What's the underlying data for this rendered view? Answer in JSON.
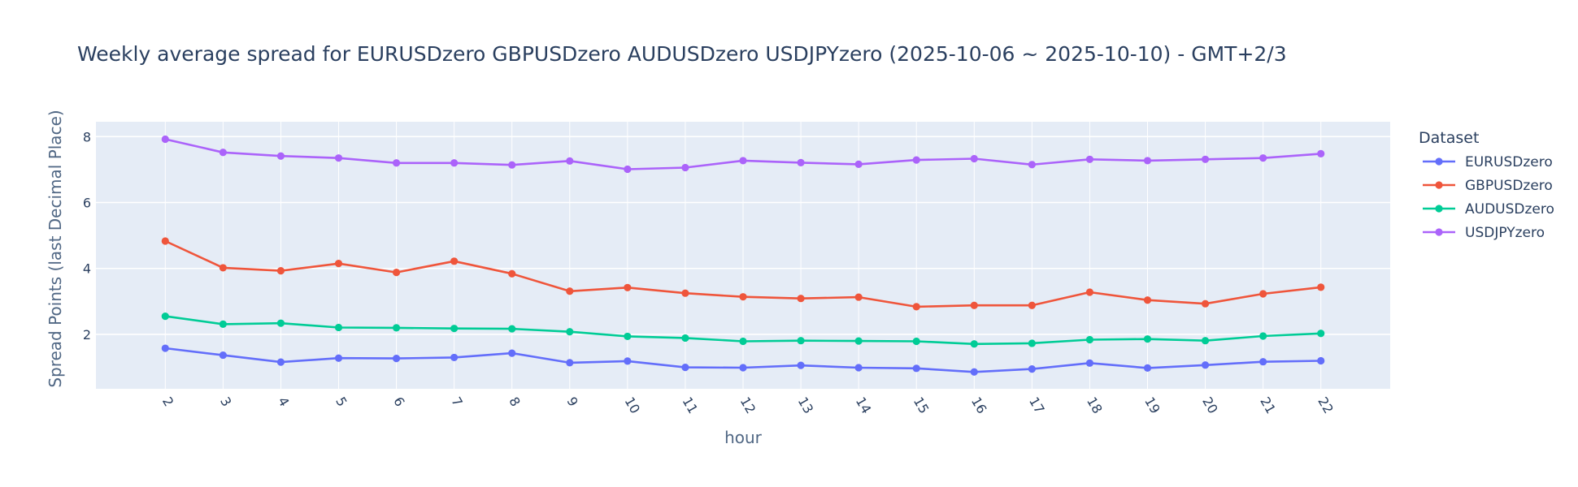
{
  "chart_data": {
    "type": "line",
    "title": "Weekly average spread for  EURUSDzero GBPUSDzero AUDUSDzero USDJPYzero (2025-10-06 ~ 2025-10-10) - GMT+2/3",
    "xlabel": "hour",
    "ylabel": "Spread Points (last Decimal Place)",
    "x": [
      2,
      3,
      4,
      5,
      6,
      7,
      8,
      9,
      10,
      11,
      12,
      13,
      14,
      15,
      16,
      17,
      18,
      19,
      20,
      21,
      22
    ],
    "x_tick_labels": [
      "2",
      "3",
      "4",
      "5",
      "6",
      "7",
      "8",
      "9",
      "10",
      "11",
      "12",
      "13",
      "14",
      "15",
      "16",
      "17",
      "18",
      "19",
      "20",
      "21",
      "22"
    ],
    "y_ticks": [
      2,
      4,
      6,
      8
    ],
    "ylim": [
      0.35,
      8.45
    ],
    "xlim": [
      0.8,
      23.2
    ],
    "grid": true,
    "legend": {
      "title": "Dataset",
      "placement": "right"
    },
    "series": [
      {
        "name": "EURUSDzero",
        "color": "#636efa",
        "values": [
          1.58,
          1.37,
          1.16,
          1.28,
          1.27,
          1.3,
          1.43,
          1.14,
          1.19,
          1.0,
          0.99,
          1.06,
          0.99,
          0.97,
          0.86,
          0.95,
          1.13,
          0.98,
          1.07,
          1.17,
          1.2
        ]
      },
      {
        "name": "GBPUSDzero",
        "color": "#ef553b",
        "values": [
          4.83,
          4.02,
          3.93,
          4.15,
          3.88,
          4.22,
          3.84,
          3.31,
          3.42,
          3.25,
          3.14,
          3.09,
          3.13,
          2.84,
          2.88,
          2.88,
          3.28,
          3.04,
          2.93,
          3.23,
          3.43
        ]
      },
      {
        "name": "AUDUSDzero",
        "color": "#00cc96",
        "values": [
          2.55,
          2.31,
          2.34,
          2.21,
          2.2,
          2.18,
          2.17,
          2.08,
          1.94,
          1.89,
          1.79,
          1.81,
          1.8,
          1.79,
          1.71,
          1.73,
          1.84,
          1.86,
          1.81,
          1.95,
          2.03
        ]
      },
      {
        "name": "USDJPYzero",
        "color": "#ab63fa",
        "values": [
          7.92,
          7.52,
          7.41,
          7.35,
          7.2,
          7.2,
          7.14,
          7.26,
          7.01,
          7.06,
          7.27,
          7.21,
          7.16,
          7.29,
          7.33,
          7.15,
          7.31,
          7.27,
          7.31,
          7.35,
          7.48
        ]
      }
    ]
  }
}
